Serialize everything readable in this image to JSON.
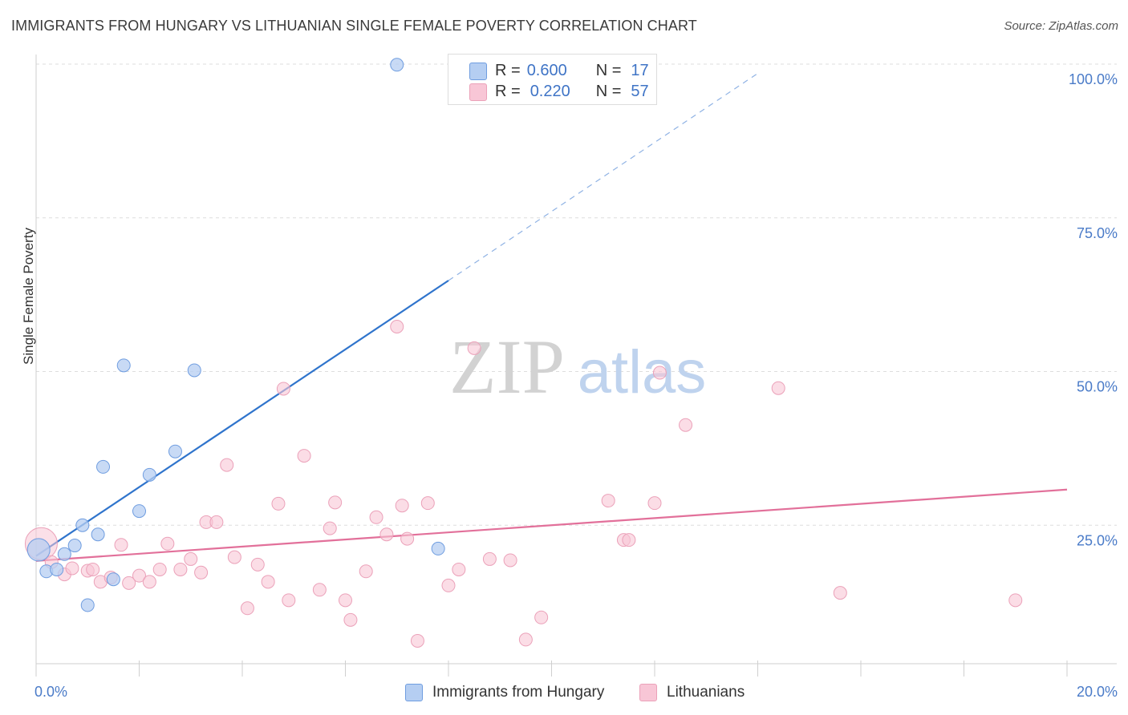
{
  "title": "IMMIGRANTS FROM HUNGARY VS LITHUANIAN SINGLE FEMALE POVERTY CORRELATION CHART",
  "source": "Source: ZipAtlas.com",
  "watermark": {
    "zip": "ZIP",
    "atlas": "atlas"
  },
  "colors": {
    "blue_fill": "#b5cef2",
    "blue_stroke": "#6f9de0",
    "blue_line": "#2f74cc",
    "pink_fill": "#f8c6d6",
    "pink_stroke": "#eba1b9",
    "pink_line": "#e2709a",
    "axis_label": "#4a7bc8",
    "grid": "#dddddd"
  },
  "legend": {
    "r_label": "R =",
    "n_label": "N =",
    "blue": {
      "r": "0.600",
      "n": "17"
    },
    "pink": {
      "r": "0.220",
      "n": "57"
    }
  },
  "chart_data": {
    "type": "scatter",
    "title": "IMMIGRANTS FROM HUNGARY VS LITHUANIAN SINGLE FEMALE POVERTY CORRELATION CHART",
    "xlabel": "",
    "ylabel": "Single Female Poverty",
    "xlim": [
      0,
      20
    ],
    "ylim": [
      0,
      105
    ],
    "x_tick_labels": [
      "0.0%",
      "20.0%"
    ],
    "y_ticks": [
      25,
      50,
      75,
      100
    ],
    "y_tick_labels": [
      "25.0%",
      "50.0%",
      "75.0%",
      "100.0%"
    ],
    "grid": true,
    "series": [
      {
        "name": "Immigrants from Hungary",
        "color": "#6f9de0",
        "r": 0.6,
        "n": 17,
        "trend": {
          "x0": 0.0,
          "y0": 20.0,
          "x1": 8.0,
          "y1": 64.8,
          "dashed_to": {
            "x": 14.0,
            "y": 98.5
          }
        },
        "points": [
          [
            0.05,
            21.0
          ],
          [
            0.2,
            17.5
          ],
          [
            0.4,
            17.8
          ],
          [
            0.55,
            20.3
          ],
          [
            0.75,
            21.7
          ],
          [
            0.9,
            25.0
          ],
          [
            1.0,
            12.0
          ],
          [
            1.2,
            23.5
          ],
          [
            1.3,
            34.5
          ],
          [
            1.5,
            16.2
          ],
          [
            1.7,
            51.0
          ],
          [
            2.0,
            27.3
          ],
          [
            2.2,
            33.2
          ],
          [
            2.7,
            37.0
          ],
          [
            3.07,
            50.2
          ],
          [
            7.0,
            99.9
          ],
          [
            7.8,
            21.2
          ]
        ]
      },
      {
        "name": "Lithuanians",
        "color": "#eba1b9",
        "r": 0.22,
        "n": 57,
        "trend": {
          "x0": 0.0,
          "y0": 19.2,
          "x1": 20.0,
          "y1": 30.8
        },
        "points": [
          [
            0.1,
            22.0
          ],
          [
            0.3,
            19.0
          ],
          [
            0.55,
            17.0
          ],
          [
            0.7,
            18.0
          ],
          [
            1.0,
            17.6
          ],
          [
            1.1,
            17.8
          ],
          [
            1.25,
            15.8
          ],
          [
            1.45,
            16.5
          ],
          [
            1.65,
            21.8
          ],
          [
            1.8,
            15.6
          ],
          [
            2.0,
            16.8
          ],
          [
            2.2,
            15.8
          ],
          [
            2.4,
            17.8
          ],
          [
            2.55,
            22.0
          ],
          [
            2.8,
            17.8
          ],
          [
            3.0,
            19.5
          ],
          [
            3.2,
            17.3
          ],
          [
            3.3,
            25.5
          ],
          [
            3.5,
            25.5
          ],
          [
            3.7,
            34.8
          ],
          [
            3.85,
            19.8
          ],
          [
            4.1,
            11.5
          ],
          [
            4.3,
            18.6
          ],
          [
            4.5,
            15.8
          ],
          [
            4.7,
            28.5
          ],
          [
            4.8,
            47.2
          ],
          [
            4.9,
            12.8
          ],
          [
            5.2,
            36.3
          ],
          [
            5.5,
            14.5
          ],
          [
            5.7,
            24.5
          ],
          [
            5.8,
            28.7
          ],
          [
            6.0,
            12.8
          ],
          [
            6.1,
            9.6
          ],
          [
            6.4,
            17.5
          ],
          [
            6.6,
            26.3
          ],
          [
            6.8,
            23.5
          ],
          [
            7.0,
            57.3
          ],
          [
            7.1,
            28.2
          ],
          [
            7.2,
            22.8
          ],
          [
            7.4,
            6.2
          ],
          [
            7.6,
            28.6
          ],
          [
            8.0,
            15.2
          ],
          [
            8.2,
            17.8
          ],
          [
            8.5,
            53.8
          ],
          [
            8.8,
            19.5
          ],
          [
            9.2,
            19.3
          ],
          [
            9.5,
            6.4
          ],
          [
            9.8,
            10.0
          ],
          [
            11.1,
            29.0
          ],
          [
            11.4,
            22.6
          ],
          [
            11.5,
            22.6
          ],
          [
            12.0,
            28.6
          ],
          [
            12.1,
            49.8
          ],
          [
            12.6,
            41.3
          ],
          [
            14.4,
            47.3
          ],
          [
            15.6,
            14.0
          ],
          [
            19.0,
            12.8
          ]
        ]
      }
    ]
  }
}
